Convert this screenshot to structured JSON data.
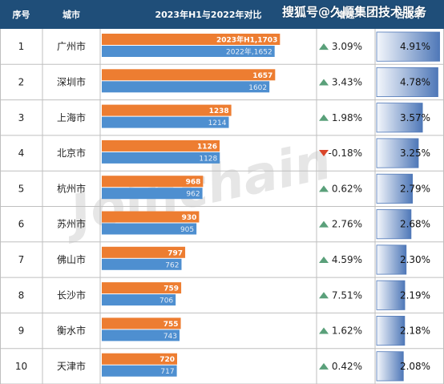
{
  "source_watermark": "搜狐号@久顺集团技术服务",
  "background_watermark": "Joinchain",
  "header": {
    "rank": "序号",
    "city": "城市",
    "compare": "2023年H1与2022年对比",
    "growth": "增速",
    "share": "占比率"
  },
  "colors": {
    "header_bg": "#1f4e79",
    "bar_2023": "#ed7d31",
    "bar_2022": "#4e8fd0",
    "up_arrow": "#5aa07a",
    "down_arrow": "#d9462b",
    "share_bar_start": "#f4f7fc",
    "share_bar_end": "#4f78b8",
    "grid": "#bfbfbf"
  },
  "chart_data": {
    "type": "bar",
    "categories": [
      "广州市",
      "深圳市",
      "上海市",
      "北京市",
      "杭州市",
      "苏州市",
      "佛山市",
      "长沙市",
      "衡水市",
      "天津市"
    ],
    "ranks": [
      "1",
      "2",
      "3",
      "4",
      "5",
      "6",
      "7",
      "8",
      "9",
      "10"
    ],
    "series": [
      {
        "name": "2023年H1",
        "values": [
          1703,
          1657,
          1238,
          1126,
          968,
          930,
          797,
          759,
          755,
          720
        ],
        "labels": [
          "2023年H1,1703",
          "1657",
          "1238",
          "1126",
          "968",
          "930",
          "797",
          "759",
          "755",
          "720"
        ]
      },
      {
        "name": "2022年",
        "values": [
          1652,
          1602,
          1214,
          1128,
          962,
          905,
          762,
          706,
          743,
          717
        ],
        "labels": [
          "2022年,1652",
          "1602",
          "1214",
          "1128",
          "962",
          "905",
          "762",
          "706",
          "743",
          "717"
        ]
      }
    ],
    "growth": [
      "3.09%",
      "3.43%",
      "1.98%",
      "-0.18%",
      "0.62%",
      "2.76%",
      "4.59%",
      "7.51%",
      "1.62%",
      "0.42%"
    ],
    "growth_direction": [
      "up",
      "up",
      "up",
      "down",
      "up",
      "up",
      "up",
      "up",
      "up",
      "up"
    ],
    "share": [
      "4.91%",
      "4.78%",
      "3.57%",
      "3.25%",
      "2.79%",
      "2.68%",
      "2.30%",
      "2.19%",
      "2.18%",
      "2.08%"
    ],
    "share_values": [
      4.91,
      4.78,
      3.57,
      3.25,
      2.79,
      2.68,
      2.3,
      2.19,
      2.18,
      2.08
    ],
    "xlim": [
      0,
      1800
    ],
    "title": "",
    "xlabel": "",
    "ylabel": ""
  }
}
